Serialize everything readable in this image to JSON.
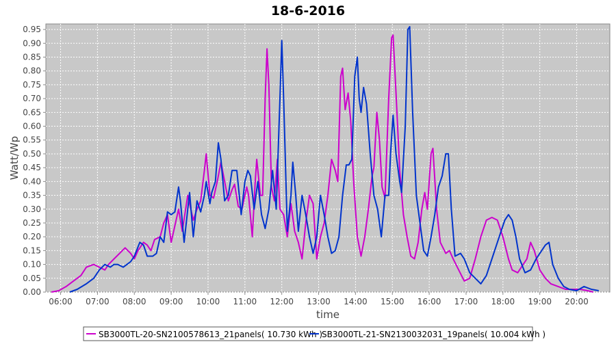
{
  "chart_data": {
    "type": "line",
    "title": "18-6-2016",
    "xlabel": "time",
    "ylabel": "Watt/Wp",
    "xlim": [
      5.6,
      20.9
    ],
    "ylim": [
      0,
      0.97
    ],
    "x_ticks": [
      "06:00",
      "07:00",
      "08:00",
      "09:00",
      "10:00",
      "11:00",
      "12:00",
      "13:00",
      "14:00",
      "15:00",
      "16:00",
      "17:00",
      "18:00",
      "19:00",
      "20:00"
    ],
    "y_ticks": [
      "0.00",
      "0.05",
      "0.10",
      "0.15",
      "0.20",
      "0.25",
      "0.30",
      "0.35",
      "0.40",
      "0.45",
      "0.50",
      "0.55",
      "0.60",
      "0.65",
      "0.70",
      "0.75",
      "0.80",
      "0.85",
      "0.90",
      "0.95"
    ],
    "grid": true,
    "legend_position": "bottom",
    "series": [
      {
        "name": "SB3000TL-20-SN2100578613_21panels( 10.730 kWh )",
        "color": "#cc00cc",
        "points": [
          [
            5.75,
            0.0
          ],
          [
            5.95,
            0.005
          ],
          [
            6.15,
            0.02
          ],
          [
            6.35,
            0.04
          ],
          [
            6.55,
            0.06
          ],
          [
            6.7,
            0.09
          ],
          [
            6.9,
            0.1
          ],
          [
            7.05,
            0.09
          ],
          [
            7.2,
            0.08
          ],
          [
            7.3,
            0.1
          ],
          [
            7.45,
            0.12
          ],
          [
            7.6,
            0.14
          ],
          [
            7.75,
            0.16
          ],
          [
            7.9,
            0.14
          ],
          [
            8.0,
            0.12
          ],
          [
            8.1,
            0.15
          ],
          [
            8.25,
            0.18
          ],
          [
            8.35,
            0.17
          ],
          [
            8.45,
            0.15
          ],
          [
            8.55,
            0.19
          ],
          [
            8.7,
            0.2
          ],
          [
            8.8,
            0.25
          ],
          [
            8.9,
            0.28
          ],
          [
            9.0,
            0.18
          ],
          [
            9.1,
            0.24
          ],
          [
            9.2,
            0.3
          ],
          [
            9.3,
            0.22
          ],
          [
            9.45,
            0.35
          ],
          [
            9.6,
            0.26
          ],
          [
            9.7,
            0.3
          ],
          [
            9.8,
            0.33
          ],
          [
            9.9,
            0.44
          ],
          [
            9.95,
            0.5
          ],
          [
            10.05,
            0.35
          ],
          [
            10.15,
            0.34
          ],
          [
            10.25,
            0.4
          ],
          [
            10.35,
            0.47
          ],
          [
            10.45,
            0.4
          ],
          [
            10.55,
            0.33
          ],
          [
            10.65,
            0.37
          ],
          [
            10.72,
            0.39
          ],
          [
            10.82,
            0.31
          ],
          [
            10.92,
            0.3
          ],
          [
            11.0,
            0.35
          ],
          [
            11.05,
            0.38
          ],
          [
            11.1,
            0.35
          ],
          [
            11.2,
            0.2
          ],
          [
            11.28,
            0.4
          ],
          [
            11.32,
            0.48
          ],
          [
            11.42,
            0.35
          ],
          [
            11.48,
            0.35
          ],
          [
            11.55,
            0.7
          ],
          [
            11.6,
            0.88
          ],
          [
            11.65,
            0.75
          ],
          [
            11.72,
            0.38
          ],
          [
            11.8,
            0.33
          ],
          [
            11.88,
            0.48
          ],
          [
            11.95,
            0.3
          ],
          [
            12.05,
            0.28
          ],
          [
            12.15,
            0.2
          ],
          [
            12.25,
            0.32
          ],
          [
            12.35,
            0.22
          ],
          [
            12.45,
            0.18
          ],
          [
            12.55,
            0.12
          ],
          [
            12.65,
            0.25
          ],
          [
            12.75,
            0.35
          ],
          [
            12.85,
            0.32
          ],
          [
            12.95,
            0.12
          ],
          [
            13.05,
            0.2
          ],
          [
            13.15,
            0.25
          ],
          [
            13.25,
            0.35
          ],
          [
            13.35,
            0.48
          ],
          [
            13.45,
            0.44
          ],
          [
            13.52,
            0.4
          ],
          [
            13.6,
            0.78
          ],
          [
            13.65,
            0.81
          ],
          [
            13.72,
            0.66
          ],
          [
            13.8,
            0.72
          ],
          [
            13.87,
            0.62
          ],
          [
            13.95,
            0.4
          ],
          [
            14.05,
            0.2
          ],
          [
            14.15,
            0.13
          ],
          [
            14.25,
            0.2
          ],
          [
            14.35,
            0.3
          ],
          [
            14.45,
            0.42
          ],
          [
            14.5,
            0.45
          ],
          [
            14.58,
            0.65
          ],
          [
            14.65,
            0.55
          ],
          [
            14.72,
            0.38
          ],
          [
            14.8,
            0.34
          ],
          [
            14.9,
            0.7
          ],
          [
            14.98,
            0.92
          ],
          [
            15.02,
            0.93
          ],
          [
            15.1,
            0.72
          ],
          [
            15.2,
            0.44
          ],
          [
            15.3,
            0.28
          ],
          [
            15.4,
            0.2
          ],
          [
            15.5,
            0.13
          ],
          [
            15.6,
            0.12
          ],
          [
            15.7,
            0.18
          ],
          [
            15.8,
            0.3
          ],
          [
            15.88,
            0.36
          ],
          [
            15.95,
            0.3
          ],
          [
            16.05,
            0.5
          ],
          [
            16.1,
            0.52
          ],
          [
            16.2,
            0.3
          ],
          [
            16.3,
            0.18
          ],
          [
            16.45,
            0.14
          ],
          [
            16.55,
            0.15
          ],
          [
            16.65,
            0.12
          ],
          [
            16.8,
            0.08
          ],
          [
            16.95,
            0.04
          ],
          [
            17.1,
            0.05
          ],
          [
            17.25,
            0.12
          ],
          [
            17.4,
            0.2
          ],
          [
            17.55,
            0.26
          ],
          [
            17.7,
            0.27
          ],
          [
            17.85,
            0.26
          ],
          [
            18.0,
            0.2
          ],
          [
            18.15,
            0.12
          ],
          [
            18.25,
            0.08
          ],
          [
            18.4,
            0.07
          ],
          [
            18.55,
            0.1
          ],
          [
            18.65,
            0.12
          ],
          [
            18.75,
            0.18
          ],
          [
            18.85,
            0.15
          ],
          [
            19.0,
            0.08
          ],
          [
            19.15,
            0.05
          ],
          [
            19.3,
            0.03
          ],
          [
            19.5,
            0.02
          ],
          [
            19.7,
            0.01
          ],
          [
            19.9,
            0.01
          ],
          [
            20.1,
            0.01
          ],
          [
            20.3,
            0.005
          ],
          [
            20.45,
            0.0
          ]
        ]
      },
      {
        "name": "SB3000TL-21-SN2130032031_19panels( 10.004 kWh )",
        "color": "#0033cc",
        "points": [
          [
            6.25,
            0.0
          ],
          [
            6.45,
            0.01
          ],
          [
            6.7,
            0.03
          ],
          [
            6.9,
            0.05
          ],
          [
            7.05,
            0.08
          ],
          [
            7.2,
            0.1
          ],
          [
            7.35,
            0.09
          ],
          [
            7.45,
            0.1
          ],
          [
            7.55,
            0.1
          ],
          [
            7.7,
            0.09
          ],
          [
            7.8,
            0.1
          ],
          [
            7.9,
            0.11
          ],
          [
            8.0,
            0.13
          ],
          [
            8.15,
            0.18
          ],
          [
            8.25,
            0.17
          ],
          [
            8.35,
            0.13
          ],
          [
            8.5,
            0.13
          ],
          [
            8.6,
            0.14
          ],
          [
            8.7,
            0.2
          ],
          [
            8.8,
            0.18
          ],
          [
            8.9,
            0.29
          ],
          [
            9.0,
            0.28
          ],
          [
            9.1,
            0.29
          ],
          [
            9.2,
            0.38
          ],
          [
            9.25,
            0.33
          ],
          [
            9.35,
            0.18
          ],
          [
            9.5,
            0.36
          ],
          [
            9.6,
            0.2
          ],
          [
            9.7,
            0.33
          ],
          [
            9.8,
            0.29
          ],
          [
            9.9,
            0.35
          ],
          [
            9.95,
            0.4
          ],
          [
            10.05,
            0.32
          ],
          [
            10.1,
            0.36
          ],
          [
            10.2,
            0.4
          ],
          [
            10.28,
            0.54
          ],
          [
            10.35,
            0.48
          ],
          [
            10.45,
            0.33
          ],
          [
            10.55,
            0.35
          ],
          [
            10.65,
            0.44
          ],
          [
            10.78,
            0.44
          ],
          [
            10.9,
            0.28
          ],
          [
            11.0,
            0.4
          ],
          [
            11.08,
            0.44
          ],
          [
            11.15,
            0.42
          ],
          [
            11.25,
            0.3
          ],
          [
            11.35,
            0.4
          ],
          [
            11.45,
            0.28
          ],
          [
            11.55,
            0.23
          ],
          [
            11.65,
            0.3
          ],
          [
            11.75,
            0.44
          ],
          [
            11.85,
            0.3
          ],
          [
            11.95,
            0.7
          ],
          [
            12.0,
            0.91
          ],
          [
            12.05,
            0.7
          ],
          [
            12.15,
            0.22
          ],
          [
            12.25,
            0.35
          ],
          [
            12.3,
            0.47
          ],
          [
            12.38,
            0.35
          ],
          [
            12.45,
            0.22
          ],
          [
            12.55,
            0.35
          ],
          [
            12.65,
            0.28
          ],
          [
            12.75,
            0.2
          ],
          [
            12.85,
            0.14
          ],
          [
            12.95,
            0.2
          ],
          [
            13.05,
            0.35
          ],
          [
            13.15,
            0.28
          ],
          [
            13.25,
            0.2
          ],
          [
            13.35,
            0.14
          ],
          [
            13.45,
            0.15
          ],
          [
            13.55,
            0.2
          ],
          [
            13.65,
            0.35
          ],
          [
            13.75,
            0.46
          ],
          [
            13.82,
            0.46
          ],
          [
            13.9,
            0.48
          ],
          [
            13.98,
            0.78
          ],
          [
            14.05,
            0.85
          ],
          [
            14.1,
            0.7
          ],
          [
            14.15,
            0.65
          ],
          [
            14.22,
            0.74
          ],
          [
            14.3,
            0.68
          ],
          [
            14.4,
            0.5
          ],
          [
            14.5,
            0.35
          ],
          [
            14.6,
            0.3
          ],
          [
            14.7,
            0.2
          ],
          [
            14.8,
            0.35
          ],
          [
            14.9,
            0.35
          ],
          [
            14.95,
            0.5
          ],
          [
            15.02,
            0.64
          ],
          [
            15.1,
            0.5
          ],
          [
            15.2,
            0.4
          ],
          [
            15.25,
            0.36
          ],
          [
            15.35,
            0.6
          ],
          [
            15.42,
            0.95
          ],
          [
            15.47,
            0.96
          ],
          [
            15.55,
            0.65
          ],
          [
            15.65,
            0.35
          ],
          [
            15.75,
            0.25
          ],
          [
            15.85,
            0.15
          ],
          [
            15.95,
            0.13
          ],
          [
            16.05,
            0.2
          ],
          [
            16.15,
            0.28
          ],
          [
            16.25,
            0.38
          ],
          [
            16.35,
            0.42
          ],
          [
            16.45,
            0.5
          ],
          [
            16.52,
            0.5
          ],
          [
            16.6,
            0.3
          ],
          [
            16.7,
            0.13
          ],
          [
            16.85,
            0.14
          ],
          [
            16.95,
            0.12
          ],
          [
            17.1,
            0.07
          ],
          [
            17.25,
            0.05
          ],
          [
            17.4,
            0.03
          ],
          [
            17.55,
            0.06
          ],
          [
            17.7,
            0.12
          ],
          [
            17.85,
            0.18
          ],
          [
            17.95,
            0.22
          ],
          [
            18.05,
            0.26
          ],
          [
            18.15,
            0.28
          ],
          [
            18.25,
            0.26
          ],
          [
            18.35,
            0.2
          ],
          [
            18.45,
            0.12
          ],
          [
            18.6,
            0.07
          ],
          [
            18.75,
            0.08
          ],
          [
            18.9,
            0.12
          ],
          [
            19.0,
            0.14
          ],
          [
            19.15,
            0.17
          ],
          [
            19.25,
            0.18
          ],
          [
            19.35,
            0.1
          ],
          [
            19.5,
            0.05
          ],
          [
            19.65,
            0.02
          ],
          [
            19.8,
            0.01
          ],
          [
            20.0,
            0.005
          ],
          [
            20.2,
            0.02
          ],
          [
            20.4,
            0.01
          ],
          [
            20.6,
            0.005
          ]
        ]
      }
    ]
  }
}
